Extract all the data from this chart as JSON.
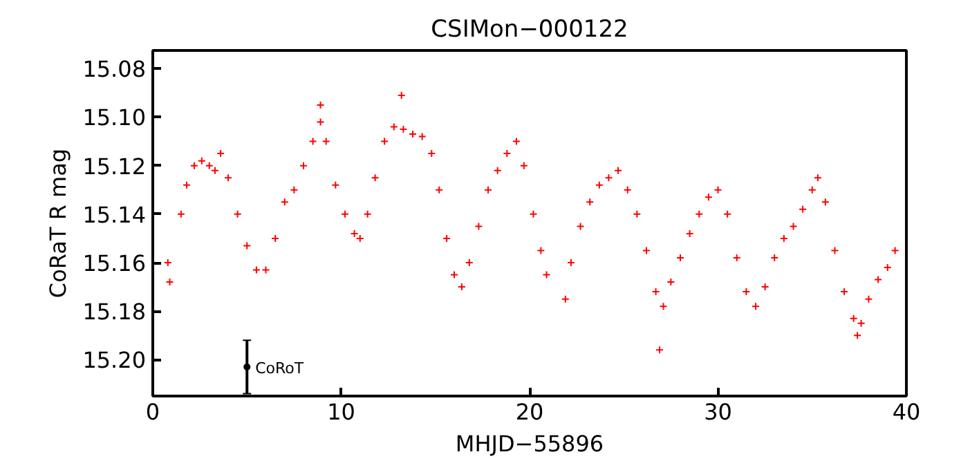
{
  "chart_data": {
    "type": "scatter",
    "title": "CSIMon−000122",
    "xlabel": "MHJD−55896",
    "ylabel": "CoRaT R mag",
    "xlim": [
      0,
      40
    ],
    "ylim": [
      15.215,
      15.0725
    ],
    "xticks": [
      0,
      10,
      20,
      30,
      40
    ],
    "yticks": [
      {
        "value": 15.08,
        "label": "15.08"
      },
      {
        "value": 15.1,
        "label": "15.10"
      },
      {
        "value": 15.12,
        "label": "15.12"
      },
      {
        "value": 15.14,
        "label": "15.14"
      },
      {
        "value": 15.16,
        "label": "15.16"
      },
      {
        "value": 15.18,
        "label": "15.18"
      },
      {
        "value": 15.2,
        "label": "15.20"
      }
    ],
    "grid": false,
    "series": [
      {
        "color": "#ff0000",
        "marker": "cross",
        "x": [
          0.8,
          0.9,
          1.5,
          1.8,
          2.2,
          2.6,
          3.0,
          3.3,
          3.6,
          4.0,
          4.5,
          5.0,
          5.5,
          6.0,
          6.5,
          7.0,
          7.5,
          8.0,
          8.5,
          8.9,
          8.9,
          9.2,
          9.7,
          10.2,
          10.7,
          11.0,
          11.4,
          11.8,
          12.3,
          12.8,
          13.2,
          13.3,
          13.8,
          14.3,
          14.8,
          15.2,
          15.6,
          16.0,
          16.4,
          16.8,
          17.3,
          17.8,
          18.3,
          18.8,
          19.3,
          19.7,
          20.2,
          20.6,
          20.9,
          21.9,
          22.2,
          22.7,
          23.2,
          23.7,
          24.2,
          24.7,
          25.2,
          25.7,
          26.2,
          26.7,
          26.9,
          27.1,
          27.5,
          28.0,
          28.5,
          29.0,
          29.5,
          30.0,
          30.5,
          31.0,
          31.5,
          32.0,
          32.5,
          33.0,
          33.5,
          34.0,
          34.5,
          35.0,
          35.3,
          35.7,
          36.2,
          36.7,
          37.2,
          37.4,
          37.6,
          38.0,
          38.5,
          39.0,
          39.4
        ],
        "values": [
          15.16,
          15.168,
          15.14,
          15.128,
          15.12,
          15.118,
          15.12,
          15.122,
          15.115,
          15.125,
          15.14,
          15.153,
          15.163,
          15.163,
          15.15,
          15.135,
          15.13,
          15.12,
          15.11,
          15.102,
          15.095,
          15.11,
          15.128,
          15.14,
          15.148,
          15.15,
          15.14,
          15.125,
          15.11,
          15.104,
          15.091,
          15.105,
          15.107,
          15.108,
          15.115,
          15.13,
          15.15,
          15.165,
          15.17,
          15.16,
          15.145,
          15.13,
          15.122,
          15.115,
          15.11,
          15.12,
          15.14,
          15.155,
          15.165,
          15.175,
          15.16,
          15.145,
          15.135,
          15.128,
          15.125,
          15.122,
          15.13,
          15.14,
          15.155,
          15.172,
          15.196,
          15.178,
          15.168,
          15.158,
          15.148,
          15.14,
          15.133,
          15.13,
          15.14,
          15.158,
          15.172,
          15.178,
          15.17,
          15.158,
          15.15,
          15.145,
          15.138,
          15.13,
          15.125,
          15.135,
          15.155,
          15.172,
          15.183,
          15.19,
          15.185,
          15.175,
          15.167,
          15.162,
          15.155
        ]
      },
      {
        "name": "CoRoT",
        "color": "#000000",
        "marker": "circle",
        "x": [
          5
        ],
        "values": [
          15.203
        ],
        "errors": [
          0.011
        ]
      }
    ]
  }
}
